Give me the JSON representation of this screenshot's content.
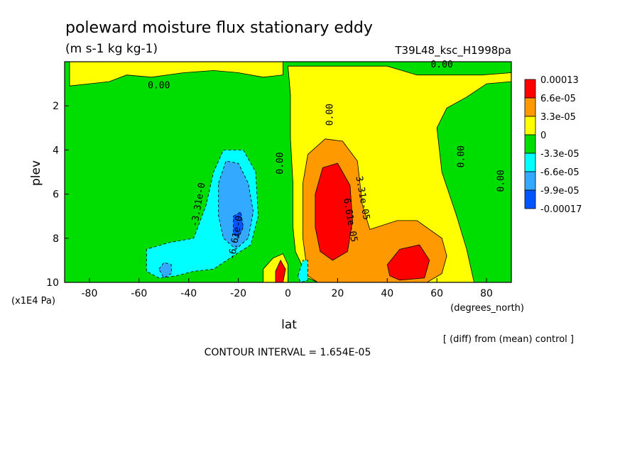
{
  "chart_data": {
    "type": "heatmap",
    "title": "poleward moisture flux stationary eddy",
    "units": "(m s-1 kg kg-1)",
    "run_label": "T39L48_ksc_H1998pa",
    "xlabel": "lat",
    "xunit": "(degrees_north)",
    "ylabel": "plev",
    "yunit": "(x1E4 Pa)",
    "xlim": [
      -90,
      90
    ],
    "ylim": [
      10,
      0
    ],
    "xticks": [
      -80,
      -60,
      -40,
      -20,
      0,
      20,
      40,
      60,
      80
    ],
    "xtick_labels": [
      "-80",
      "-60",
      "-40",
      "-20",
      "0",
      "20",
      "40",
      "60",
      "80"
    ],
    "yticks": [
      2,
      4,
      6,
      8,
      10
    ],
    "ytick_labels": [
      "2",
      "4",
      "6",
      "8",
      "10"
    ],
    "contour_interval_text": "CONTOUR INTERVAL = 1.654E-05",
    "diff_note": "[ (diff) from (mean) control ]",
    "legend": {
      "placement": "right",
      "labels": [
        "0.00013",
        "6.6e-05",
        "3.3e-05",
        "0",
        "-3.3e-05",
        "-6.6e-05",
        "-9.9e-05",
        "-0.00017"
      ],
      "colors": [
        "#ff0000",
        "#ff9900",
        "#ffff00",
        "#00dd00",
        "#00ffff",
        "#33aaff",
        "#0055ff"
      ]
    },
    "regions": [
      {
        "name": "zero-band",
        "level": 0,
        "color": "#00dd00",
        "poly": [
          [
            -90,
            0
          ],
          [
            90,
            0
          ],
          [
            90,
            10
          ],
          [
            -90,
            10
          ]
        ]
      },
      {
        "name": "nh-positive",
        "level": 3.3e-05,
        "color": "#ffff00",
        "poly": [
          [
            0,
            0.2
          ],
          [
            40,
            0.2
          ],
          [
            52,
            0.6
          ],
          [
            68,
            0.6
          ],
          [
            78,
            0.6
          ],
          [
            90,
            0.5
          ],
          [
            90,
            0.9
          ],
          [
            80,
            1.0
          ],
          [
            72,
            1.6
          ],
          [
            64,
            2.1
          ],
          [
            60,
            3.0
          ],
          [
            62,
            5.0
          ],
          [
            68,
            7.0
          ],
          [
            72,
            8.5
          ],
          [
            75,
            10
          ],
          [
            12,
            10
          ],
          [
            8,
            9.8
          ],
          [
            3,
            8.6
          ],
          [
            2,
            7.5
          ],
          [
            2,
            5.5
          ],
          [
            1,
            3.5
          ],
          [
            1,
            1.5
          ]
        ]
      },
      {
        "name": "upper-left-positive",
        "level": 3.3e-05,
        "color": "#ffff00",
        "poly": [
          [
            -88,
            0
          ],
          [
            -2,
            0
          ],
          [
            -2,
            0.6
          ],
          [
            -10,
            0.7
          ],
          [
            -20,
            0.5
          ],
          [
            -30,
            0.4
          ],
          [
            -42,
            0.5
          ],
          [
            -55,
            0.7
          ],
          [
            -65,
            0.6
          ],
          [
            -72,
            0.9
          ],
          [
            -80,
            1.0
          ],
          [
            -88,
            1.1
          ]
        ]
      },
      {
        "name": "tropical-positive",
        "level": 3.3e-05,
        "color": "#ffff00",
        "poly": [
          [
            -10,
            9.4
          ],
          [
            -6,
            8.9
          ],
          [
            -2,
            8.7
          ],
          [
            0,
            9.2
          ],
          [
            0,
            10
          ],
          [
            -10,
            10
          ]
        ]
      },
      {
        "name": "nh-orange",
        "level": 6.6e-05,
        "color": "#ff9900",
        "poly": [
          [
            6,
            5.5
          ],
          [
            8,
            4.2
          ],
          [
            15,
            3.5
          ],
          [
            22,
            3.6
          ],
          [
            28,
            4.5
          ],
          [
            30,
            6.5
          ],
          [
            33,
            7.6
          ],
          [
            44,
            7.2
          ],
          [
            52,
            7.2
          ],
          [
            62,
            8.0
          ],
          [
            64,
            8.8
          ],
          [
            62,
            9.6
          ],
          [
            56,
            10
          ],
          [
            12,
            10
          ],
          [
            8,
            9.7
          ],
          [
            6,
            8.0
          ]
        ]
      },
      {
        "name": "nh-red-core",
        "level": 0.00013,
        "color": "#ff0000",
        "poly": [
          [
            11,
            6.0
          ],
          [
            14,
            4.8
          ],
          [
            20,
            4.6
          ],
          [
            25,
            5.6
          ],
          [
            26,
            7.2
          ],
          [
            24,
            8.6
          ],
          [
            18,
            9.0
          ],
          [
            13,
            8.6
          ],
          [
            11,
            7.5
          ]
        ]
      },
      {
        "name": "nh-red-secondary",
        "level": 0.00013,
        "color": "#ff0000",
        "poly": [
          [
            40,
            9.2
          ],
          [
            45,
            8.5
          ],
          [
            53,
            8.3
          ],
          [
            57,
            9.0
          ],
          [
            55,
            9.8
          ],
          [
            45,
            9.9
          ],
          [
            41,
            9.7
          ]
        ]
      },
      {
        "name": "sh-cyan",
        "level": -6.6e-05,
        "color": "#00ffff",
        "poly": [
          [
            -57,
            9.5
          ],
          [
            -57,
            8.5
          ],
          [
            -48,
            8.2
          ],
          [
            -38,
            8.0
          ],
          [
            -33,
            6.5
          ],
          [
            -30,
            5.0
          ],
          [
            -26,
            4.0
          ],
          [
            -18,
            4.0
          ],
          [
            -13,
            5.0
          ],
          [
            -12,
            7.0
          ],
          [
            -15,
            8.3
          ],
          [
            -22,
            8.8
          ],
          [
            -30,
            9.4
          ],
          [
            -38,
            9.5
          ],
          [
            -45,
            9.7
          ],
          [
            -52,
            9.8
          ]
        ]
      },
      {
        "name": "sh-blue",
        "level": -9.9e-05,
        "color": "#33aaff",
        "poly": [
          [
            -28,
            5.5
          ],
          [
            -25,
            4.5
          ],
          [
            -20,
            4.6
          ],
          [
            -16,
            5.5
          ],
          [
            -14,
            6.8
          ],
          [
            -16,
            8.0
          ],
          [
            -21,
            8.5
          ],
          [
            -26,
            8.0
          ],
          [
            -28,
            7.0
          ]
        ]
      },
      {
        "name": "sh-blue-small",
        "level": -9.9e-05,
        "color": "#33aaff",
        "poly": [
          [
            -52,
            9.4
          ],
          [
            -50,
            9.1
          ],
          [
            -47,
            9.2
          ],
          [
            -47,
            9.6
          ],
          [
            -50,
            9.8
          ]
        ]
      },
      {
        "name": "sh-dark-core",
        "level": -0.00017,
        "color": "#0055ff",
        "poly": [
          [
            -22,
            7.0
          ],
          [
            -19,
            6.8
          ],
          [
            -18,
            7.5
          ],
          [
            -20,
            8.0
          ],
          [
            -22,
            7.8
          ]
        ]
      },
      {
        "name": "tropical-red",
        "level": 0.00013,
        "color": "#ff0000",
        "poly": [
          [
            -5,
            9.5
          ],
          [
            -3,
            9.0
          ],
          [
            -1,
            9.4
          ],
          [
            -2,
            10
          ],
          [
            -5,
            10
          ]
        ]
      },
      {
        "name": "tropical-cyan",
        "level": -6.6e-05,
        "color": "#00ffff",
        "poly": [
          [
            4,
            9.7
          ],
          [
            6,
            9.0
          ],
          [
            8,
            9.0
          ],
          [
            8,
            9.9
          ],
          [
            5,
            10
          ]
        ]
      }
    ],
    "contour_labels": [
      {
        "text": "0.00",
        "lat": -52,
        "plev": 1.2,
        "rotate": 0
      },
      {
        "text": "0.00",
        "lat": -2,
        "plev": 4.6,
        "rotate": -90
      },
      {
        "text": "0.00",
        "lat": 18,
        "plev": 2.4,
        "rotate": -90
      },
      {
        "text": "0.00",
        "lat": 62,
        "plev": 0.25,
        "rotate": 0
      },
      {
        "text": "0.00",
        "lat": 71,
        "plev": 4.3,
        "rotate": -90
      },
      {
        "text": "0.00",
        "lat": 87,
        "plev": 5.4,
        "rotate": -90
      },
      {
        "text": "3.31e-05",
        "lat": 29,
        "plev": 6.2,
        "rotate": 80
      },
      {
        "text": "6.61e-05",
        "lat": 24,
        "plev": 7.2,
        "rotate": 80
      },
      {
        "text": "-3.31e-0",
        "lat": -35,
        "plev": 6.5,
        "rotate": -80
      },
      {
        "text": "-6.61e-0",
        "lat": -20,
        "plev": 8.0,
        "rotate": -80
      }
    ]
  }
}
